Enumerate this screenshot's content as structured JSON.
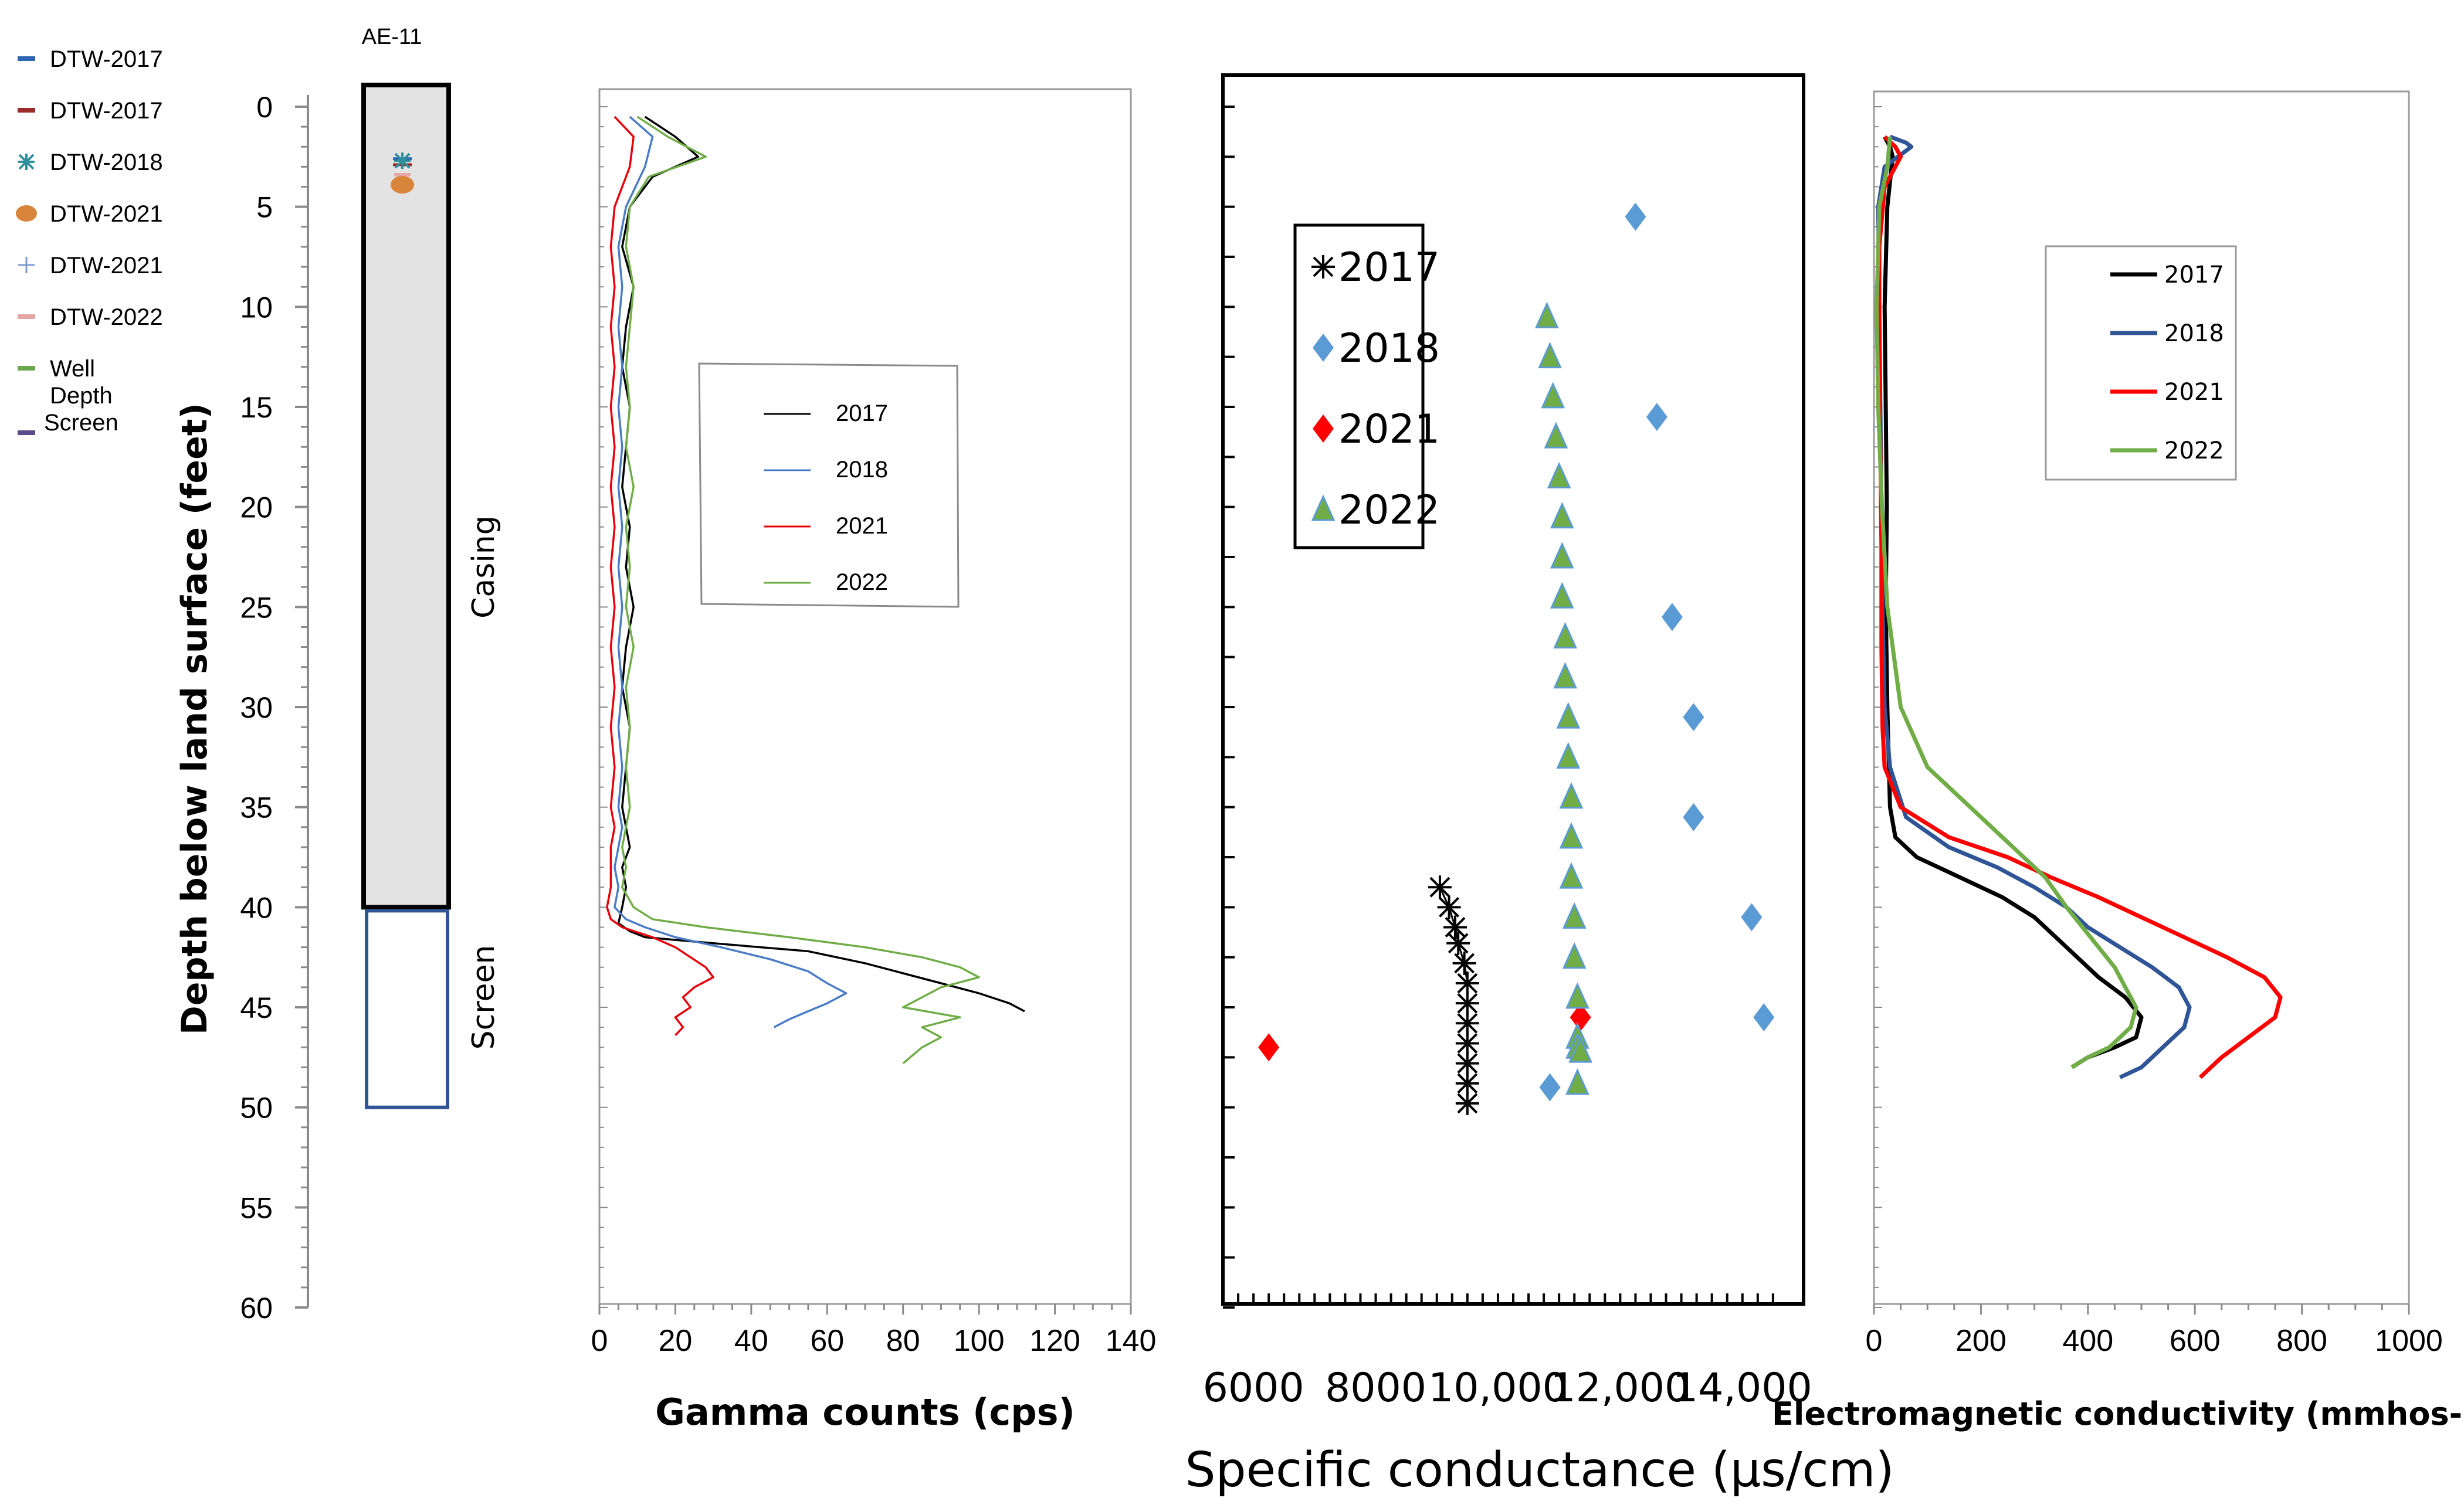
{
  "well": {
    "name": "AE-11",
    "casing_label": "Casing",
    "screen_label": "Screen",
    "casing_bottom_ft": 40,
    "screen_bottom_ft": 50,
    "colors": {
      "casing_fill": "#e3e3e3",
      "casing_border": "#000000",
      "screen_border": "#2f5597"
    }
  },
  "left_legend": [
    {
      "label": "DTW-2017",
      "marker": "line",
      "color": "#2e67b1"
    },
    {
      "label": "DTW-2017",
      "marker": "line",
      "color": "#9e2a2b"
    },
    {
      "label": "DTW-2018",
      "marker": "asterisk",
      "color": "#2f8f9d"
    },
    {
      "label": "DTW-2021",
      "marker": "circle",
      "color": "#d9843b"
    },
    {
      "label": "DTW-2021",
      "marker": "plus",
      "color": "#7c9bd1"
    },
    {
      "label": "DTW-2022",
      "marker": "line",
      "color": "#e6a6a6"
    },
    {
      "label": "Well Depth Screen",
      "lines": [
        "Well",
        "Depth",
        "Screen"
      ],
      "marker": "line",
      "color": "#6aa84f",
      "color2": "#5b4b8a"
    }
  ],
  "depth_axis": {
    "label": "Depth below land surface (feet)",
    "ticks": [
      "0",
      "5",
      "10",
      "15",
      "20",
      "25",
      "30",
      "35",
      "40",
      "45",
      "50",
      "55",
      "60"
    ],
    "range": [
      0,
      60
    ]
  },
  "chart_data": [
    {
      "type": "line",
      "id": "gamma",
      "xlabel": "Gamma counts (cps)",
      "ylabel": "Depth below land surface (feet)",
      "xlim": [
        0,
        140
      ],
      "ylim": [
        60,
        0
      ],
      "xticks": [
        "0",
        "20",
        "40",
        "60",
        "80",
        "100",
        "120",
        "140"
      ],
      "legend_position": "upper-middle",
      "series": [
        {
          "name": "2017",
          "color": "#000000",
          "x": [
            12,
            20,
            26,
            14,
            8,
            6,
            9,
            7,
            6,
            8,
            7,
            6,
            8,
            7,
            9,
            7,
            6,
            8,
            7,
            6,
            7,
            8,
            6,
            7,
            6,
            5,
            8,
            12,
            30,
            55,
            70,
            80,
            90,
            100,
            108,
            112
          ],
          "y": [
            0.5,
            1.5,
            2.5,
            3.5,
            5,
            7,
            9,
            11,
            13,
            15,
            17,
            19,
            21,
            23,
            25,
            27,
            29,
            31,
            33,
            35,
            36,
            37,
            38,
            39,
            40,
            40.8,
            41.2,
            41.5,
            41.8,
            42.2,
            42.8,
            43.3,
            43.8,
            44.3,
            44.8,
            45.2
          ]
        },
        {
          "name": "2018",
          "color": "#4a7cc7",
          "x": [
            8,
            14,
            12,
            7,
            5,
            6,
            5,
            6,
            5,
            6,
            5,
            6,
            5,
            6,
            5,
            6,
            5,
            6,
            5,
            6,
            5,
            4,
            5,
            4,
            7,
            12,
            20,
            32,
            45,
            55,
            60,
            65,
            60,
            55,
            50,
            46
          ],
          "y": [
            0.5,
            1.5,
            3,
            5,
            7,
            9,
            11,
            13,
            15,
            17,
            19,
            21,
            23,
            25,
            27,
            29,
            31,
            33,
            35,
            36,
            37,
            38,
            39,
            40,
            40.6,
            41,
            41.5,
            42,
            42.6,
            43.2,
            43.8,
            44.3,
            44.8,
            45.2,
            45.6,
            46
          ]
        },
        {
          "name": "2021",
          "color": "#e8000b",
          "x": [
            4,
            9,
            8,
            4,
            3,
            4,
            3,
            4,
            3,
            4,
            3,
            4,
            3,
            4,
            3,
            4,
            3,
            4,
            3,
            4,
            3,
            3,
            3,
            2,
            3,
            6,
            14,
            20,
            24,
            28,
            30,
            25,
            22,
            24,
            20,
            22,
            20
          ],
          "y": [
            0.5,
            1.5,
            3,
            5,
            7,
            9,
            11,
            13,
            15,
            17,
            19,
            21,
            23,
            25,
            27,
            29,
            31,
            33,
            35,
            36,
            37,
            38,
            39,
            40,
            40.6,
            41,
            41.5,
            42,
            42.5,
            43,
            43.5,
            44,
            44.5,
            45,
            45.5,
            46,
            46.4
          ]
        },
        {
          "name": "2022",
          "color": "#70ad47",
          "x": [
            10,
            18,
            28,
            13,
            8,
            7,
            9,
            8,
            7,
            8,
            7,
            9,
            7,
            8,
            7,
            9,
            7,
            8,
            7,
            8,
            7,
            6,
            7,
            6,
            9,
            14,
            28,
            50,
            70,
            85,
            95,
            100,
            90,
            85,
            80,
            95,
            85,
            90,
            85,
            80
          ],
          "y": [
            0.5,
            1.5,
            2.5,
            3.5,
            5,
            7,
            9,
            11,
            13,
            15,
            17,
            19,
            21,
            23,
            25,
            27,
            29,
            31,
            33,
            35,
            36,
            37,
            38,
            39,
            40,
            40.6,
            41,
            41.5,
            42,
            42.5,
            43,
            43.5,
            44,
            44.5,
            45,
            45.5,
            46,
            46.5,
            47,
            47.8
          ]
        }
      ]
    },
    {
      "type": "scatter",
      "id": "specific_conductance",
      "xlabel": "Specific conductance (µs/cm)",
      "xlim": [
        5500,
        15000
      ],
      "ylim": [
        60,
        0
      ],
      "xticks": [
        {
          "value": 6000,
          "label": "6000"
        },
        {
          "value": 8000,
          "label": "8000"
        },
        {
          "value": 10000,
          "label": "10,000"
        },
        {
          "value": 12000,
          "label": "12,000"
        },
        {
          "value": 14000,
          "label": "14,000"
        }
      ],
      "legend_position": "upper-left",
      "series": [
        {
          "name": "2017",
          "marker": "asterisk",
          "color": "#000000",
          "x": [
            9050,
            9200,
            9300,
            9350,
            9450,
            9500,
            9500,
            9500,
            9500,
            9500,
            9500,
            9500
          ],
          "y": [
            39,
            40,
            41,
            41.8,
            42.8,
            43.8,
            44.8,
            45.8,
            46.8,
            47.8,
            48.8,
            49.8
          ]
        },
        {
          "name": "2018",
          "marker": "diamond",
          "color": "#5b9bd5",
          "x": [
            12250,
            12600,
            12850,
            13200,
            13200,
            14150,
            14350,
            10850
          ],
          "y": [
            5.5,
            15.5,
            25.5,
            30.5,
            35.5,
            40.5,
            45.5,
            49
          ]
        },
        {
          "name": "2021",
          "marker": "diamond",
          "color": "#ff0000",
          "x": [
            6250,
            11350
          ],
          "y": [
            47,
            45.5
          ]
        },
        {
          "name": "2022",
          "marker": "triangle",
          "color": "#70ad47",
          "x": [
            10800,
            10850,
            10900,
            10950,
            11000,
            11050,
            11050,
            11050,
            11100,
            11100,
            11150,
            11150,
            11200,
            11200,
            11200,
            11250,
            11250,
            11300,
            11300,
            11300,
            11350,
            11300
          ],
          "y": [
            10.5,
            12.5,
            14.5,
            16.5,
            18.5,
            20.5,
            22.5,
            24.5,
            26.5,
            28.5,
            30.5,
            32.5,
            34.5,
            36.5,
            38.5,
            40.5,
            42.5,
            44.5,
            46.5,
            47,
            47.2,
            48.8
          ]
        }
      ]
    },
    {
      "type": "line",
      "id": "electromagnetic",
      "xlabel": "Electromagnetic conductivity (mmhos-m)",
      "xlim": [
        0,
        1000
      ],
      "ylim": [
        60,
        0
      ],
      "xticks": [
        "0",
        "200",
        "400",
        "600",
        "800",
        "1000"
      ],
      "legend_position": "upper-right",
      "series": [
        {
          "name": "2017",
          "color": "#000000",
          "x": [
            20,
            30,
            35,
            25,
            20,
            22,
            24,
            22,
            25,
            28,
            30,
            40,
            80,
            160,
            240,
            300,
            340,
            380,
            420,
            470,
            500,
            490,
            450,
            400,
            370
          ],
          "y": [
            1.5,
            2,
            2.5,
            5,
            10,
            15,
            20,
            25,
            30,
            33,
            35,
            36.5,
            37.5,
            38.5,
            39.5,
            40.5,
            41.5,
            42.5,
            43.5,
            44.5,
            45.5,
            46.5,
            47,
            47.5,
            48
          ]
        },
        {
          "name": "2018",
          "color": "#2f5597",
          "x": [
            30,
            60,
            70,
            20,
            8,
            10,
            12,
            14,
            16,
            20,
            30,
            60,
            140,
            230,
            300,
            360,
            400,
            460,
            520,
            570,
            590,
            580,
            540,
            500,
            460
          ],
          "y": [
            1.5,
            1.8,
            2,
            3,
            5,
            10,
            15,
            20,
            25,
            30,
            33,
            35.5,
            37,
            38,
            39,
            40,
            41,
            42,
            43,
            44,
            45,
            46,
            47,
            48,
            48.5
          ]
        },
        {
          "name": "2021",
          "color": "#ff0000",
          "x": [
            20,
            40,
            50,
            20,
            10,
            10,
            12,
            14,
            14,
            16,
            20,
            50,
            140,
            250,
            330,
            420,
            500,
            580,
            660,
            730,
            760,
            750,
            700,
            650,
            610
          ],
          "y": [
            1.5,
            2,
            2.5,
            4,
            7,
            12,
            17,
            22,
            27,
            31,
            33,
            35,
            36.5,
            37.5,
            38.5,
            39.5,
            40.5,
            41.5,
            42.5,
            43.5,
            44.5,
            45.5,
            46.5,
            47.5,
            48.5
          ]
        },
        {
          "name": "2022",
          "color": "#70ad47",
          "x": [
            30,
            25,
            10,
            5,
            8,
            15,
            25,
            50,
            100,
            180,
            260,
            320,
            360,
            390,
            420,
            450,
            470,
            490,
            480,
            440,
            400,
            370
          ],
          "y": [
            1.5,
            3,
            5,
            10,
            15,
            20,
            25,
            30,
            33,
            35,
            37,
            38.5,
            40,
            41,
            42,
            43,
            44,
            45,
            46,
            47,
            47.5,
            48
          ]
        }
      ]
    }
  ]
}
